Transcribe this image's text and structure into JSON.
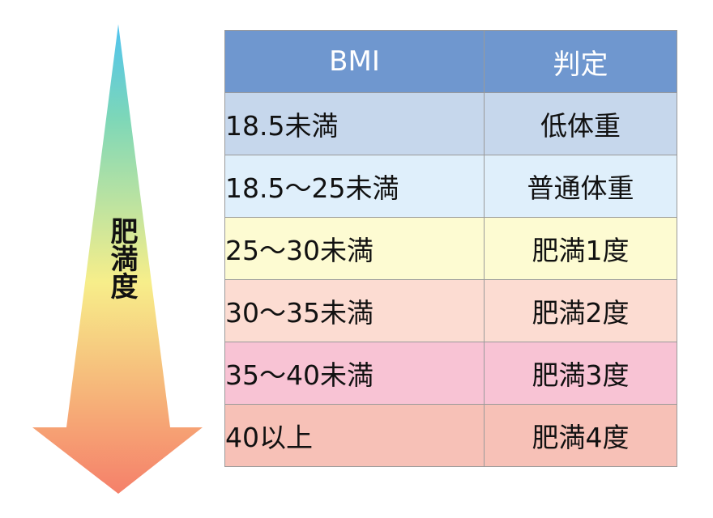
{
  "arrow": {
    "label": "肥満度",
    "colors": {
      "top": "#4fc3f0",
      "upper": "#7dd7b8",
      "middle": "#f7ee8a",
      "bottom": "#f5806a"
    }
  },
  "table": {
    "headers": {
      "bmi": "BMI",
      "judgement": "判定"
    },
    "header_color": "#6f97cf",
    "rows": [
      {
        "bmi": "18.5未満",
        "judgement": "低体重",
        "color": "#c6d7ec"
      },
      {
        "bmi": "18.5〜25未満",
        "judgement": "普通体重",
        "color": "#dfeffb"
      },
      {
        "bmi": "25〜30未満",
        "judgement": "肥満1度",
        "color": "#fdfbd2"
      },
      {
        "bmi": "30〜35未満",
        "judgement": "肥満2度",
        "color": "#fcdcd2"
      },
      {
        "bmi": "35〜40未満",
        "judgement": "肥満3度",
        "color": "#f8c3d4"
      },
      {
        "bmi": "40以上",
        "judgement": "肥満4度",
        "color": "#f7c1b7"
      }
    ]
  }
}
